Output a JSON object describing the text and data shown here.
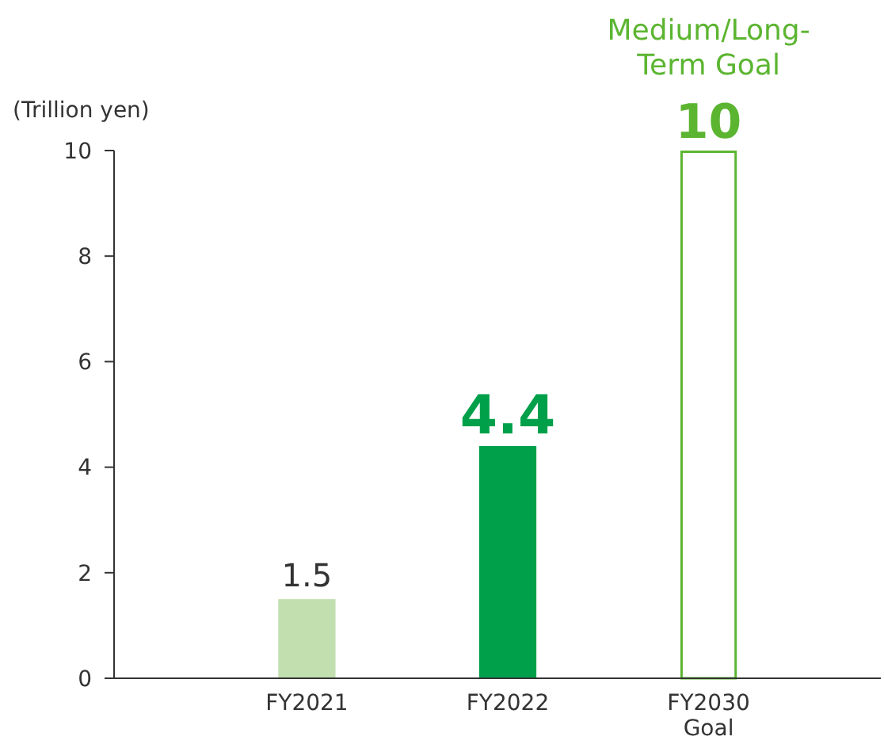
{
  "chart_data": {
    "type": "bar",
    "ylabel": "(Trillion yen)",
    "categories": [
      "FY2021",
      "FY2022",
      "FY2030\nGoal"
    ],
    "values": [
      1.5,
      4.4,
      10
    ],
    "colors": [
      "#c2dfb0",
      "#00a04a",
      "#ffffff"
    ],
    "ylim": [
      0,
      10
    ],
    "yticks": [
      0,
      2,
      4,
      6,
      8,
      10
    ],
    "grid": false,
    "data_labels": true,
    "annotations": [
      {
        "text": "Medium/Long-Term Goal",
        "x": "FY2030\nGoal",
        "y": 10
      }
    ]
  }
}
